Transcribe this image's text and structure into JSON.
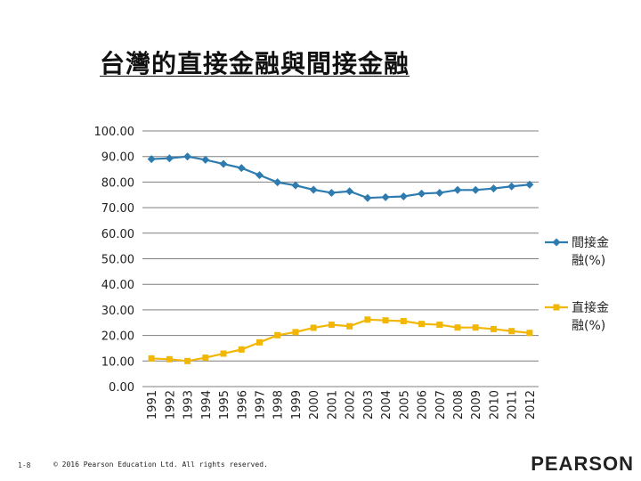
{
  "slide": {
    "title": "台灣的直接金融與間接金融",
    "page_number": "1-8",
    "copyright": "© 2016 Pearson Education Ltd. All rights reserved.",
    "brand": "PEARSON"
  },
  "colors": {
    "indirect": "#2E7BB0",
    "direct": "#F2B705",
    "grid": "#7f7f7f",
    "text": "#222222"
  },
  "chart_data": {
    "type": "line",
    "title": "台灣的直接金融與間接金融",
    "xlabel": "",
    "ylabel": "",
    "ylim": [
      0,
      100
    ],
    "yticks": [
      "0.00",
      "10.00",
      "20.00",
      "30.00",
      "40.00",
      "50.00",
      "60.00",
      "70.00",
      "80.00",
      "90.00",
      "100.00"
    ],
    "grid": true,
    "legend": "right",
    "categories": [
      "1991",
      "1992",
      "1993",
      "1994",
      "1995",
      "1996",
      "1997",
      "1998",
      "1999",
      "2000",
      "2001",
      "2002",
      "2003",
      "2004",
      "2005",
      "2006",
      "2007",
      "2008",
      "2009",
      "2010",
      "2011",
      "2012"
    ],
    "series": [
      {
        "name": "間接金融(%)",
        "legend_lines": [
          "間接金",
          "融(%)"
        ],
        "marker": "diamond",
        "color": "#2E7BB0",
        "values": [
          89.0,
          89.3,
          90.0,
          88.7,
          87.1,
          85.5,
          82.7,
          79.9,
          78.7,
          77.0,
          75.8,
          76.4,
          73.8,
          74.1,
          74.4,
          75.5,
          75.8,
          76.9,
          76.9,
          77.5,
          78.3,
          79.0
        ]
      },
      {
        "name": "直接金融(%)",
        "legend_lines": [
          "直接金",
          "融(%)"
        ],
        "marker": "square",
        "color": "#F2B705",
        "values": [
          11.0,
          10.7,
          10.0,
          11.3,
          12.9,
          14.5,
          17.3,
          20.1,
          21.3,
          23.0,
          24.2,
          23.6,
          26.2,
          25.9,
          25.6,
          24.5,
          24.2,
          23.1,
          23.1,
          22.5,
          21.7,
          21.0
        ]
      }
    ]
  }
}
